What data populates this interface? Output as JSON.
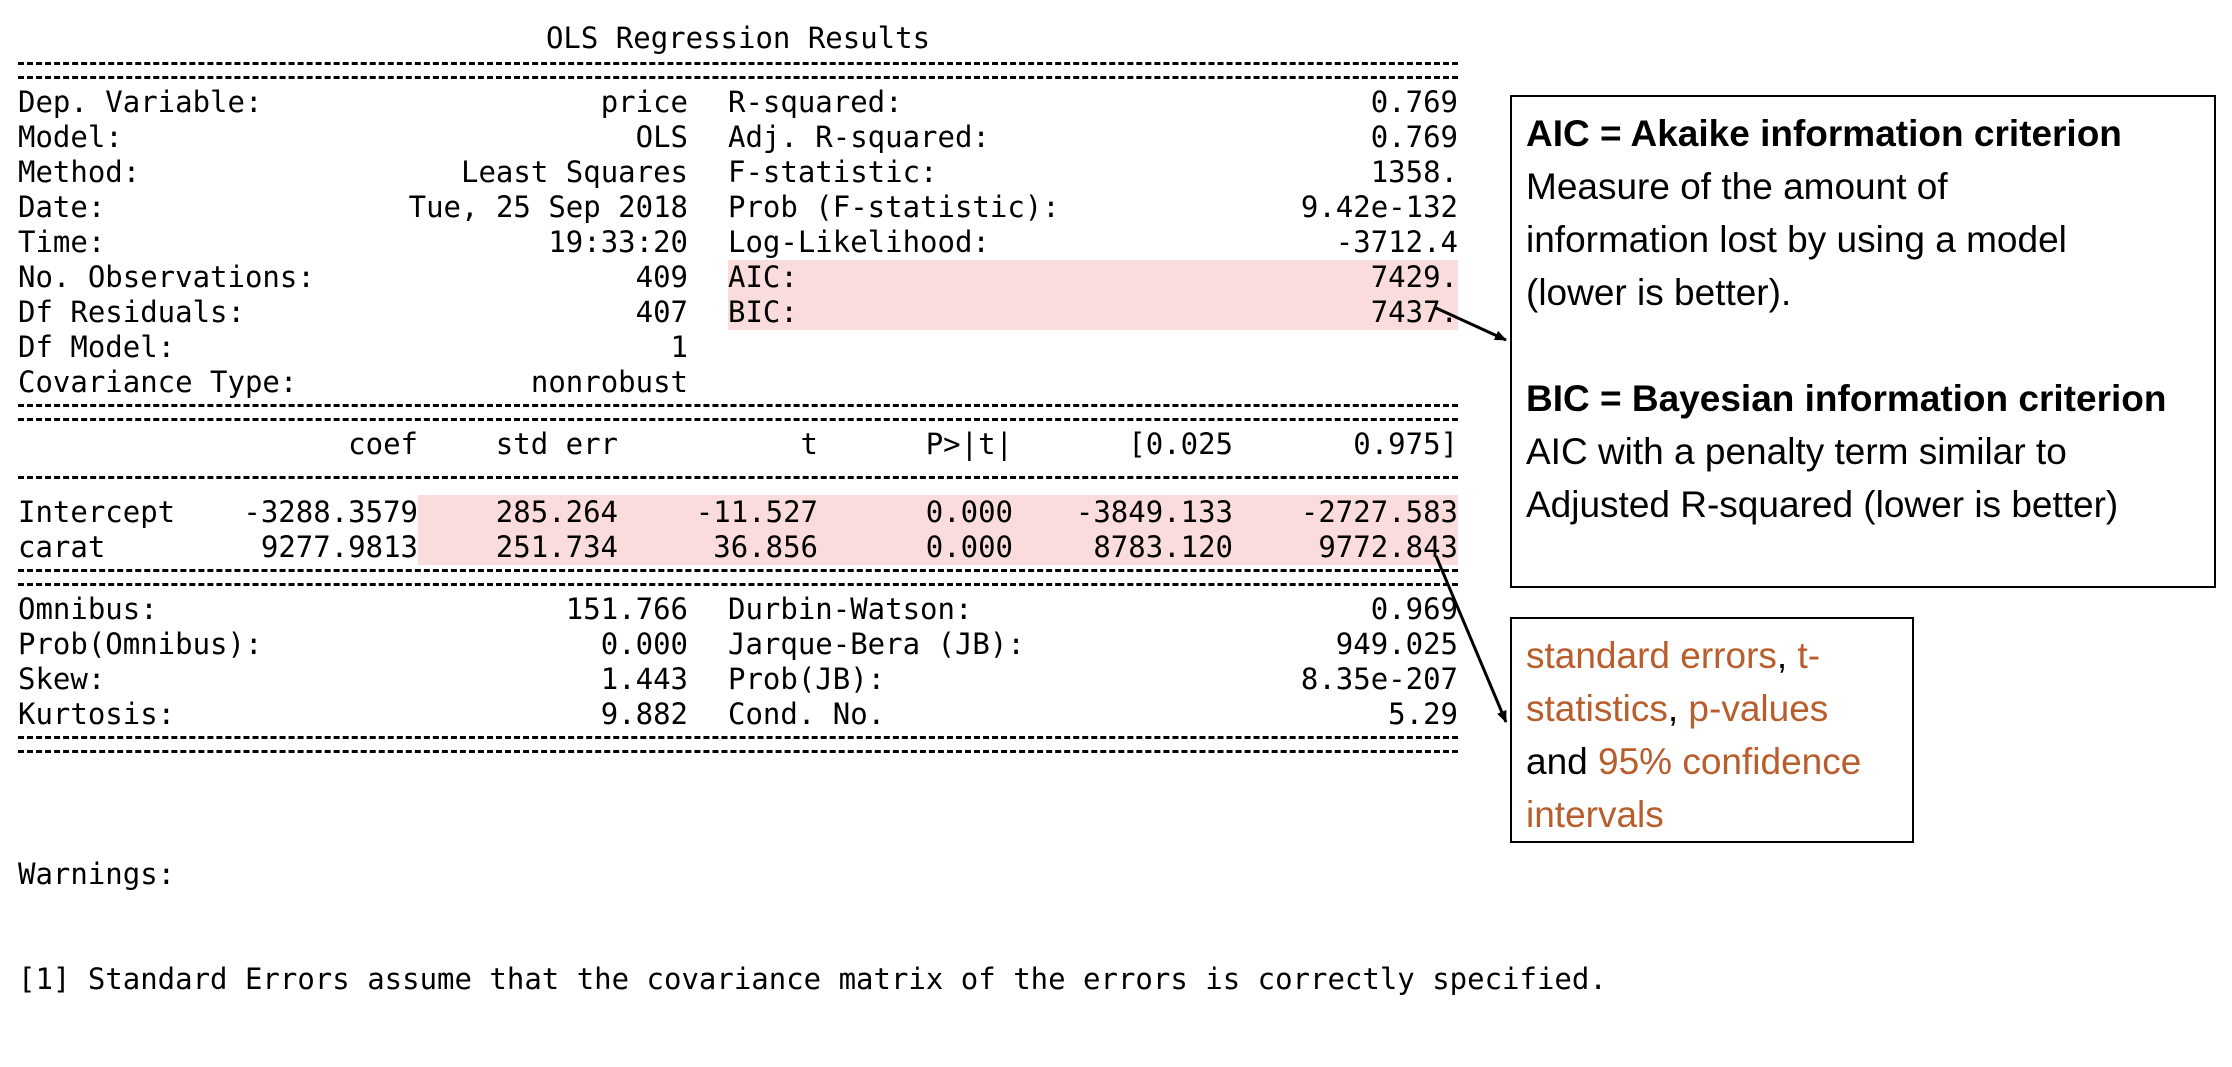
{
  "title": "OLS Regression Results",
  "summary_left": [
    {
      "label": "Dep. Variable:",
      "value": "price"
    },
    {
      "label": "Model:",
      "value": "OLS"
    },
    {
      "label": "Method:",
      "value": "Least Squares"
    },
    {
      "label": "Date:",
      "value": "Tue, 25 Sep 2018"
    },
    {
      "label": "Time:",
      "value": "19:33:20"
    },
    {
      "label": "No. Observations:",
      "value": "409"
    },
    {
      "label": "Df Residuals:",
      "value": "407"
    },
    {
      "label": "Df Model:",
      "value": "1"
    },
    {
      "label": "Covariance Type:",
      "value": "nonrobust"
    }
  ],
  "summary_right": [
    {
      "label": "R-squared:",
      "value": "0.769"
    },
    {
      "label": "Adj. R-squared:",
      "value": "0.769"
    },
    {
      "label": "F-statistic:",
      "value": "1358."
    },
    {
      "label": "Prob (F-statistic):",
      "value": "9.42e-132"
    },
    {
      "label": "Log-Likelihood:",
      "value": "-3712.4"
    },
    {
      "label": "AIC:",
      "value": "7429."
    },
    {
      "label": "BIC:",
      "value": "7437."
    }
  ],
  "coef_headers": [
    "",
    "coef",
    "std err",
    "t",
    "P>|t|",
    "[0.025",
    "0.975]"
  ],
  "coef_rows": [
    [
      "Intercept",
      "-3288.3579",
      "285.264",
      "-11.527",
      "0.000",
      "-3849.133",
      "-2727.583"
    ],
    [
      "carat",
      "9277.9813",
      "251.734",
      "36.856",
      "0.000",
      "8783.120",
      "9772.843"
    ]
  ],
  "diag_left": [
    {
      "label": "Omnibus:",
      "value": "151.766"
    },
    {
      "label": "Prob(Omnibus):",
      "value": "0.000"
    },
    {
      "label": "Skew:",
      "value": "1.443"
    },
    {
      "label": "Kurtosis:",
      "value": "9.882"
    }
  ],
  "diag_right": [
    {
      "label": "Durbin-Watson:",
      "value": "0.969"
    },
    {
      "label": "Jarque-Bera (JB):",
      "value": "949.025"
    },
    {
      "label": "Prob(JB):",
      "value": "8.35e-207"
    },
    {
      "label": "Cond. No.",
      "value": "5.29"
    }
  ],
  "warnings": {
    "heading": "Warnings:",
    "items": [
      "[1] Standard Errors assume that the covariance matrix of the errors is correctly specified."
    ]
  },
  "annotation_ic": {
    "aic_title": "AIC = Akaike information criterion",
    "aic_desc_lines": [
      "Measure of the amount of",
      "information lost by using a model",
      "(lower is better)."
    ],
    "bic_title": "BIC = Bayesian information criterion",
    "bic_desc_lines": [
      "AIC with a penalty term similar to",
      "Adjusted R-squared (lower is better)"
    ]
  },
  "annotation_coef": {
    "part1": "standard errors",
    "sep1": ", ",
    "part2a": "t-",
    "part2b": "statistics",
    "sep2": ", ",
    "part3": "p-values",
    "part4": "and ",
    "part5a": "95% confidence",
    "part5b": "intervals"
  },
  "colors": {
    "highlight": "#fadcdc",
    "accent": "#b85d2c"
  }
}
